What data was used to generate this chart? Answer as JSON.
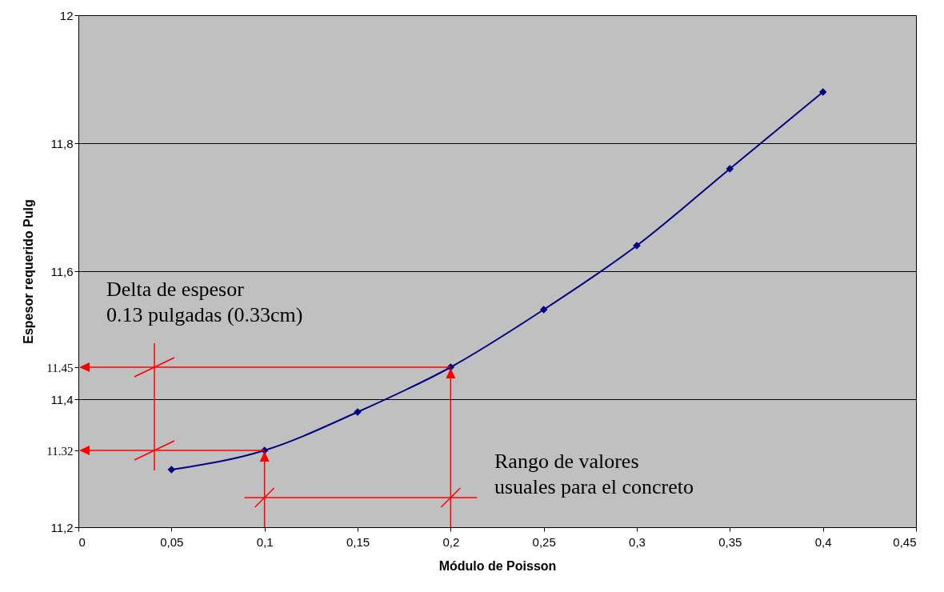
{
  "chart_data": {
    "type": "line",
    "xlabel": "Módulo de Poisson",
    "ylabel": "Espesor requerido Pulg",
    "x": [
      0.05,
      0.1,
      0.15,
      0.2,
      0.25,
      0.3,
      0.35,
      0.4
    ],
    "values": [
      11.29,
      11.32,
      11.38,
      11.45,
      11.54,
      11.64,
      11.76,
      11.88
    ],
    "color": "#000080",
    "marker": "diamond",
    "line_style": "solid",
    "grid": "y",
    "xlim": [
      0,
      0.45
    ],
    "xticks": [
      {
        "value": 0,
        "label": "0"
      },
      {
        "value": 0.05,
        "label": "0,05"
      },
      {
        "value": 0.1,
        "label": "0,1"
      },
      {
        "value": 0.15,
        "label": "0,15"
      },
      {
        "value": 0.2,
        "label": "0,2"
      },
      {
        "value": 0.25,
        "label": "0,25"
      },
      {
        "value": 0.3,
        "label": "0,3"
      },
      {
        "value": 0.35,
        "label": "0,35"
      },
      {
        "value": 0.4,
        "label": "0,4"
      },
      {
        "value": 0.45,
        "label": "0,45"
      }
    ],
    "ylim": [
      11.2,
      12
    ],
    "yticks": [
      {
        "value": 11.2,
        "label": "11,2"
      },
      {
        "value": 11.32,
        "label": "11.32"
      },
      {
        "value": 11.4,
        "label": "11,4"
      },
      {
        "value": 11.45,
        "label": "11.45"
      },
      {
        "value": 11.6,
        "label": "11,6"
      },
      {
        "value": 11.8,
        "label": "11,8"
      },
      {
        "value": 12,
        "label": "12"
      }
    ],
    "annotations": [
      "Delta de espesor\n0.13 pulgadas (0.33cm)",
      "Rango de valores\nusuales para el concreto"
    ]
  }
}
